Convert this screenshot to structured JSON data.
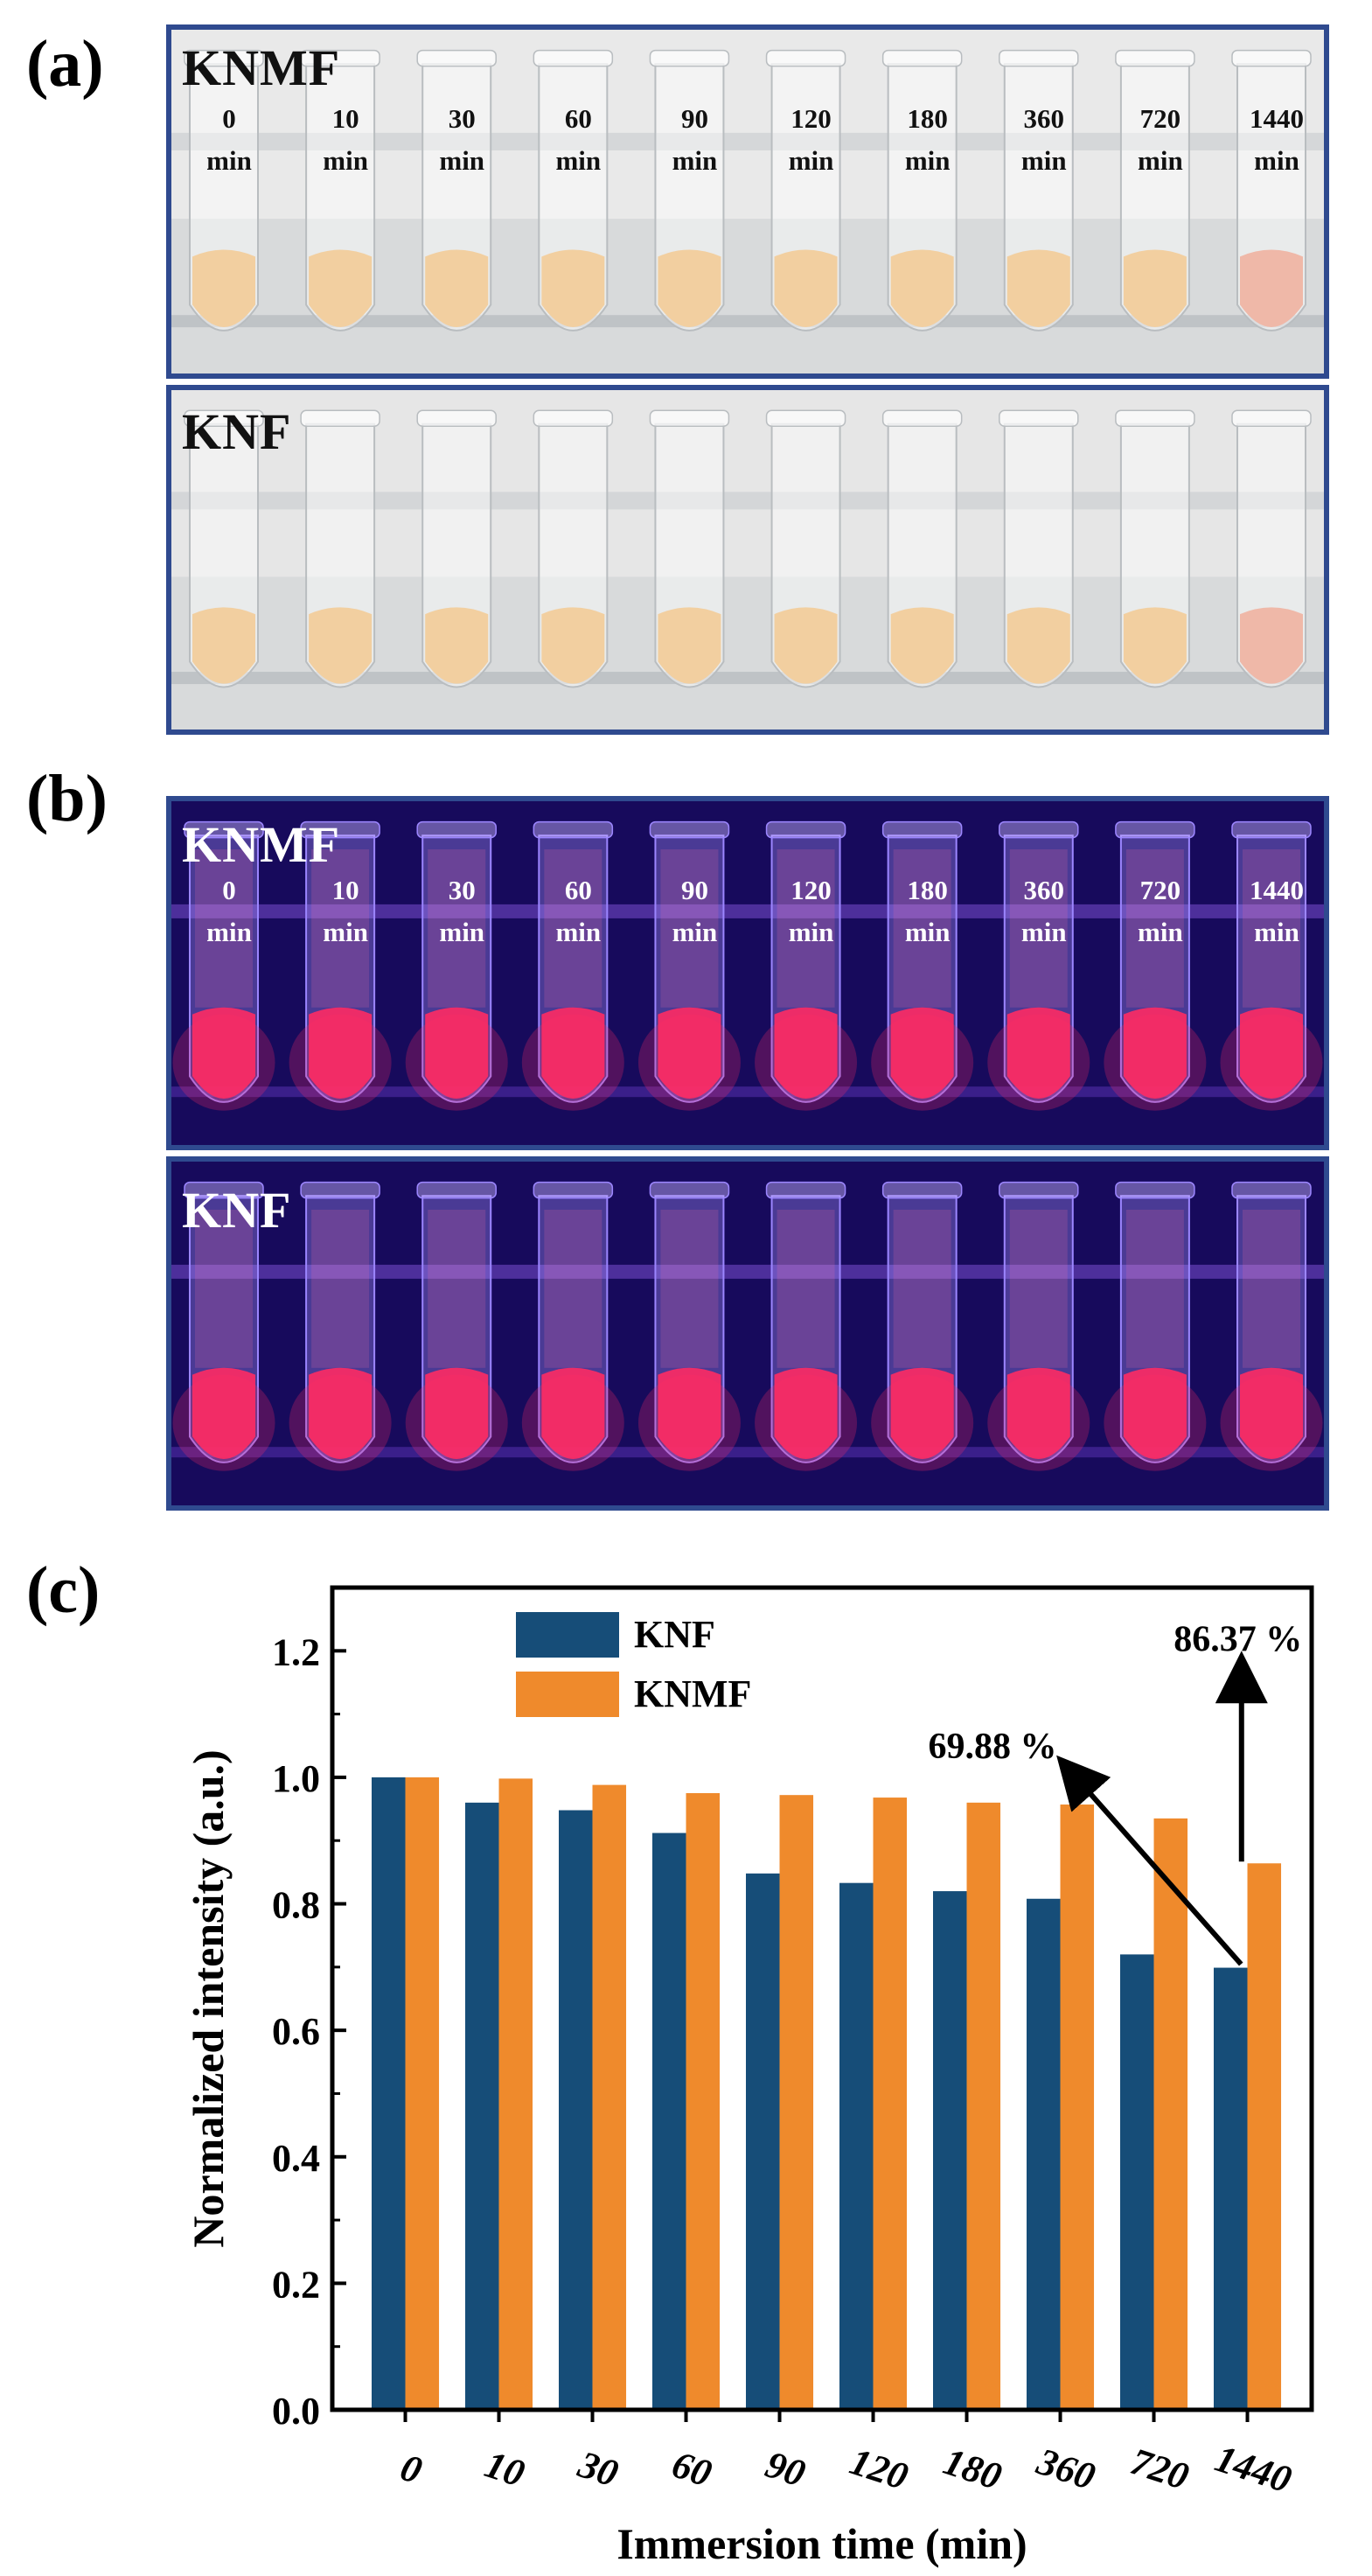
{
  "panels": {
    "a": "(a)",
    "b": "(b)",
    "c": "(c)"
  },
  "photos": {
    "knmf_label": "KNMF",
    "knf_label": "KNF",
    "unit": "min",
    "times": [
      "0",
      "10",
      "30",
      "60",
      "90",
      "120",
      "180",
      "360",
      "720",
      "1440"
    ]
  },
  "colors": {
    "frame": "#2f4a8f",
    "knf_bar": "#164d78",
    "knmf_bar": "#ef8a2c",
    "uv_bg": "#170a5c",
    "glow": "#ff2b63",
    "sample_day": "#f2cfa0"
  },
  "chart_data": {
    "type": "bar",
    "categories": [
      "0",
      "10",
      "30",
      "60",
      "90",
      "120",
      "180",
      "360",
      "720",
      "1440"
    ],
    "series": [
      {
        "name": "KNF",
        "values": [
          1.0,
          0.96,
          0.948,
          0.912,
          0.848,
          0.833,
          0.82,
          0.808,
          0.72,
          0.699
        ]
      },
      {
        "name": "KNMF",
        "values": [
          1.0,
          0.998,
          0.988,
          0.975,
          0.972,
          0.968,
          0.96,
          0.957,
          0.935,
          0.864
        ]
      }
    ],
    "xlabel": "Immersion time (min)",
    "ylabel": "Normalized intensity (a.u.)",
    "ylim": [
      0.0,
      1.3
    ],
    "yticks": [
      "0.0",
      "0.2",
      "0.4",
      "0.6",
      "0.8",
      "1.0",
      "1.2"
    ],
    "legend_position": "top-center",
    "annotations": [
      {
        "text": "69.88 %",
        "series": "KNF",
        "category": "1440"
      },
      {
        "text": "86.37 %",
        "series": "KNMF",
        "category": "1440"
      }
    ]
  }
}
